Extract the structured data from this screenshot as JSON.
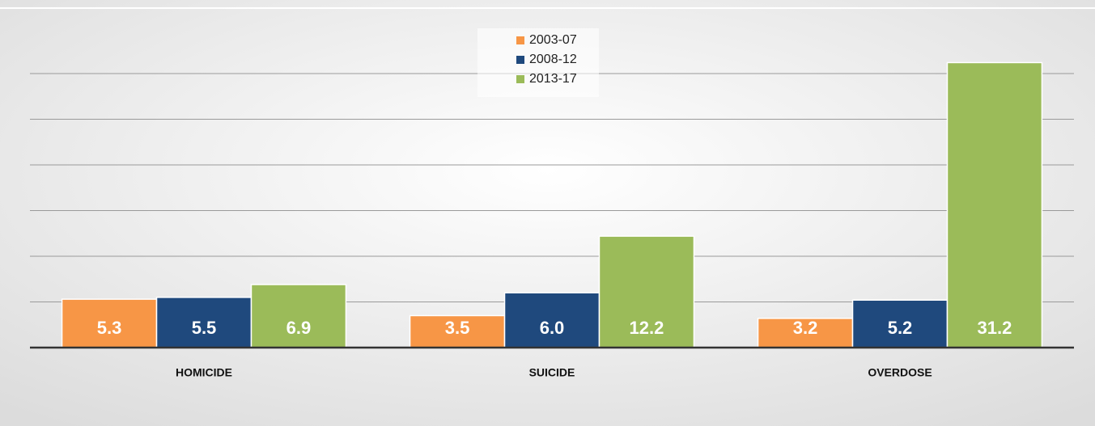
{
  "chart_data": {
    "type": "bar",
    "categories": [
      "HOMICIDE",
      "SUICIDE",
      "OVERDOSE"
    ],
    "series": [
      {
        "name": "2003-07",
        "color": "#f79646",
        "values": [
          5.3,
          3.5,
          3.2
        ]
      },
      {
        "name": "2008-12",
        "color": "#1f497d",
        "values": [
          5.5,
          6.0,
          5.2
        ],
        "value_labels": [
          "5.5",
          "6.0",
          "5.2"
        ]
      },
      {
        "name": "2013-17",
        "color": "#9bbb59",
        "values": [
          6.9,
          12.2,
          31.2
        ]
      }
    ],
    "ylim": [
      0,
      35
    ],
    "yticks": [
      0,
      5,
      10,
      15,
      20,
      25,
      30
    ],
    "grid": true,
    "legend": "top"
  }
}
